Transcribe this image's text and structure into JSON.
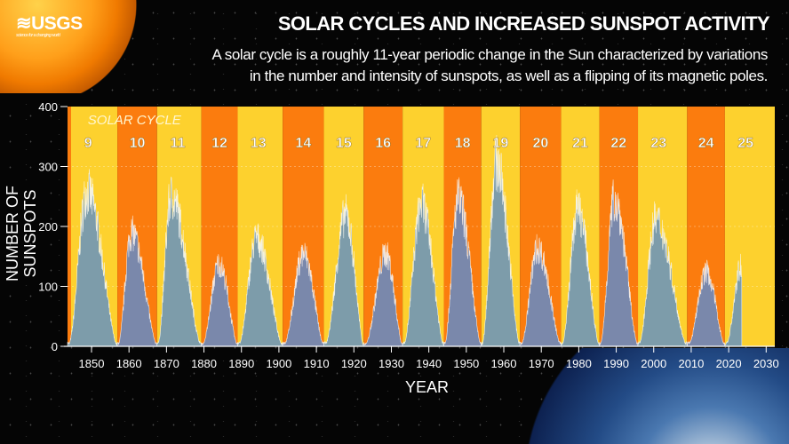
{
  "logo": {
    "name": "USGS",
    "tagline": "science for a changing world"
  },
  "header": {
    "title": "SOLAR CYCLES AND INCREASED SUNSPOT ACTIVITY",
    "subtitle_line1": "A solar cycle is a roughly 11-year periodic change in the Sun characterized by variations",
    "subtitle_line2": "in the number and intensity of sunspots, as well as a flipping of its magnetic poles."
  },
  "chart_data": {
    "type": "area",
    "title": "SOLAR CYCLES AND INCREASED SUNSPOT ACTIVITY",
    "xlabel": "YEAR",
    "ylabel": "NUMBER OF SUNSPOTS",
    "band_label": "SOLAR CYCLE",
    "xlim": [
      1843.6,
      2032.3
    ],
    "ylim": [
      0,
      400
    ],
    "xticks": [
      1850,
      1860,
      1870,
      1880,
      1890,
      1900,
      1910,
      1920,
      1930,
      1940,
      1950,
      1960,
      1970,
      1980,
      1990,
      2000,
      2010,
      2020,
      2030
    ],
    "yticks": [
      0,
      100,
      200,
      300,
      400
    ],
    "colors": {
      "yellow": "#fdd12e",
      "orange": "#fb7c0e",
      "fill_a": "#7d9caa",
      "fill_b": "#7a88ab",
      "edge": "#ffffff"
    },
    "cycles": [
      {
        "number": "9",
        "start": 1843.6,
        "end": 1856.9,
        "peak_year": 1848.8,
        "peak": 300
      },
      {
        "number": "10",
        "start": 1856.9,
        "end": 1867.5,
        "peak_year": 1860.6,
        "peak": 220
      },
      {
        "number": "11",
        "start": 1867.5,
        "end": 1879.3,
        "peak_year": 1871.2,
        "peak": 290
      },
      {
        "number": "12",
        "start": 1879.3,
        "end": 1889.0,
        "peak_year": 1884.0,
        "peak": 160
      },
      {
        "number": "13",
        "start": 1889.0,
        "end": 1901.0,
        "peak_year": 1894.0,
        "peak": 210
      },
      {
        "number": "14",
        "start": 1901.0,
        "end": 1912.0,
        "peak_year": 1906.5,
        "peak": 180
      },
      {
        "number": "15",
        "start": 1912.0,
        "end": 1922.6,
        "peak_year": 1917.8,
        "peak": 255
      },
      {
        "number": "16",
        "start": 1922.6,
        "end": 1933.0,
        "peak_year": 1928.5,
        "peak": 180
      },
      {
        "number": "17",
        "start": 1933.0,
        "end": 1944.0,
        "peak_year": 1938.0,
        "peak": 275
      },
      {
        "number": "18",
        "start": 1944.0,
        "end": 1954.0,
        "peak_year": 1947.8,
        "peak": 285
      },
      {
        "number": "19",
        "start": 1954.0,
        "end": 1964.3,
        "peak_year": 1958.0,
        "peak": 355
      },
      {
        "number": "20",
        "start": 1964.3,
        "end": 1975.3,
        "peak_year": 1969.0,
        "peak": 190
      },
      {
        "number": "21",
        "start": 1975.3,
        "end": 1985.5,
        "peak_year": 1979.7,
        "peak": 265
      },
      {
        "number": "22",
        "start": 1985.5,
        "end": 1995.8,
        "peak_year": 1989.5,
        "peak": 285
      },
      {
        "number": "23",
        "start": 1995.8,
        "end": 2008.9,
        "peak_year": 2000.5,
        "peak": 245
      },
      {
        "number": "24",
        "start": 2008.9,
        "end": 2019.0,
        "peak_year": 2014.0,
        "peak": 145
      },
      {
        "number": "25",
        "start": 2019.0,
        "end": 2032.3,
        "peak_year": 2023.5,
        "peak": 160,
        "data_end": 2023.5
      }
    ]
  }
}
